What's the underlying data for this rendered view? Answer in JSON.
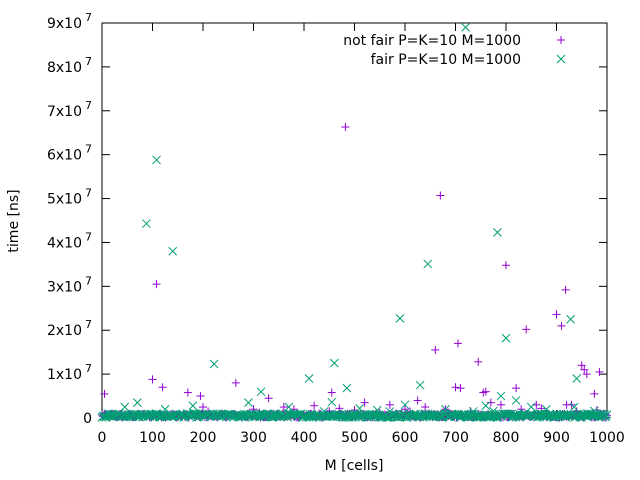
{
  "chart_data": {
    "type": "scatter",
    "xlabel": "M [cells]",
    "ylabel": "time [ns]",
    "xlim": [
      0,
      1000
    ],
    "ylim": [
      0,
      90000000
    ],
    "x_ticks": [
      0,
      100,
      200,
      300,
      400,
      500,
      600,
      700,
      800,
      900,
      1000
    ],
    "x_tick_labels": [
      "0",
      "100",
      "200",
      "300",
      "400",
      "500",
      "600",
      "700",
      "800",
      "900",
      "1000"
    ],
    "y_ticks": [
      0,
      10000000,
      20000000,
      30000000,
      40000000,
      50000000,
      60000000,
      70000000,
      80000000,
      90000000
    ],
    "y_tick_labels": [
      {
        "mant": "0",
        "exp": ""
      },
      {
        "mant": "1x10",
        "exp": "7"
      },
      {
        "mant": "2x10",
        "exp": "7"
      },
      {
        "mant": "3x10",
        "exp": "7"
      },
      {
        "mant": "4x10",
        "exp": "7"
      },
      {
        "mant": "5x10",
        "exp": "7"
      },
      {
        "mant": "6x10",
        "exp": "7"
      },
      {
        "mant": "7x10",
        "exp": "7"
      },
      {
        "mant": "8x10",
        "exp": "7"
      },
      {
        "mant": "9x10",
        "exp": "7"
      }
    ],
    "legend_position": "top-right",
    "grid": false,
    "series": [
      {
        "name": "not fair P=K=10 M=1000",
        "marker": "plus",
        "color": "#9400d3",
        "points": [
          [
            5,
            5500000
          ],
          [
            20,
            1000000
          ],
          [
            40,
            300000
          ],
          [
            60,
            200000
          ],
          [
            100,
            8800000
          ],
          [
            108,
            30500000
          ],
          [
            120,
            7000000
          ],
          [
            150,
            300000
          ],
          [
            170,
            5800000
          ],
          [
            195,
            5000000
          ],
          [
            200,
            2500000
          ],
          [
            210,
            1500000
          ],
          [
            240,
            700000
          ],
          [
            265,
            8000000
          ],
          [
            300,
            2000000
          ],
          [
            312,
            1200000
          ],
          [
            320,
            1000000
          ],
          [
            330,
            4500000
          ],
          [
            360,
            2500000
          ],
          [
            380,
            2000000
          ],
          [
            420,
            2800000
          ],
          [
            450,
            1500000
          ],
          [
            455,
            5800000
          ],
          [
            470,
            2200000
          ],
          [
            482,
            66300000
          ],
          [
            500,
            1800000
          ],
          [
            520,
            3500000
          ],
          [
            550,
            1200000
          ],
          [
            570,
            3000000
          ],
          [
            600,
            2000000
          ],
          [
            610,
            1500000
          ],
          [
            625,
            4000000
          ],
          [
            640,
            2500000
          ],
          [
            660,
            15500000
          ],
          [
            670,
            50700000
          ],
          [
            680,
            2000000
          ],
          [
            700,
            7000000
          ],
          [
            705,
            17000000
          ],
          [
            710,
            6800000
          ],
          [
            730,
            1500000
          ],
          [
            745,
            12800000
          ],
          [
            755,
            5800000
          ],
          [
            760,
            6000000
          ],
          [
            770,
            3500000
          ],
          [
            790,
            3000000
          ],
          [
            800,
            34800000
          ],
          [
            820,
            6800000
          ],
          [
            830,
            2000000
          ],
          [
            840,
            20200000
          ],
          [
            860,
            3000000
          ],
          [
            870,
            2200000
          ],
          [
            900,
            23600000
          ],
          [
            910,
            21000000
          ],
          [
            918,
            29200000
          ],
          [
            920,
            3000000
          ],
          [
            930,
            3000000
          ],
          [
            940,
            1500000
          ],
          [
            950,
            12000000
          ],
          [
            955,
            11000000
          ],
          [
            960,
            10000000
          ],
          [
            975,
            5500000
          ],
          [
            980,
            1800000
          ],
          [
            985,
            10500000
          ],
          [
            990,
            500000
          ],
          [
            995,
            900000
          ]
        ]
      },
      {
        "name": "fair P=K=10 M=1000",
        "marker": "cross",
        "color": "#009e73",
        "points": [
          [
            15,
            500000
          ],
          [
            45,
            2500000
          ],
          [
            70,
            3500000
          ],
          [
            88,
            44300000
          ],
          [
            108,
            58800000
          ],
          [
            125,
            2000000
          ],
          [
            140,
            38000000
          ],
          [
            180,
            2800000
          ],
          [
            222,
            12300000
          ],
          [
            290,
            3500000
          ],
          [
            315,
            6000000
          ],
          [
            340,
            1000000
          ],
          [
            370,
            2500000
          ],
          [
            410,
            9000000
          ],
          [
            440,
            1500000
          ],
          [
            455,
            3600000
          ],
          [
            460,
            12500000
          ],
          [
            485,
            6800000
          ],
          [
            510,
            2200000
          ],
          [
            545,
            1800000
          ],
          [
            570,
            1500000
          ],
          [
            590,
            22700000
          ],
          [
            600,
            3000000
          ],
          [
            630,
            7500000
          ],
          [
            645,
            35100000
          ],
          [
            680,
            2000000
          ],
          [
            720,
            89000000
          ],
          [
            735,
            1500000
          ],
          [
            760,
            2800000
          ],
          [
            775,
            1600000
          ],
          [
            783,
            42300000
          ],
          [
            790,
            5000000
          ],
          [
            800,
            18200000
          ],
          [
            820,
            4000000
          ],
          [
            850,
            2500000
          ],
          [
            880,
            2000000
          ],
          [
            928,
            22500000
          ],
          [
            935,
            2500000
          ],
          [
            940,
            9000000
          ],
          [
            960,
            1000000
          ],
          [
            975,
            1600000
          ],
          [
            995,
            800000
          ]
        ]
      }
    ]
  }
}
